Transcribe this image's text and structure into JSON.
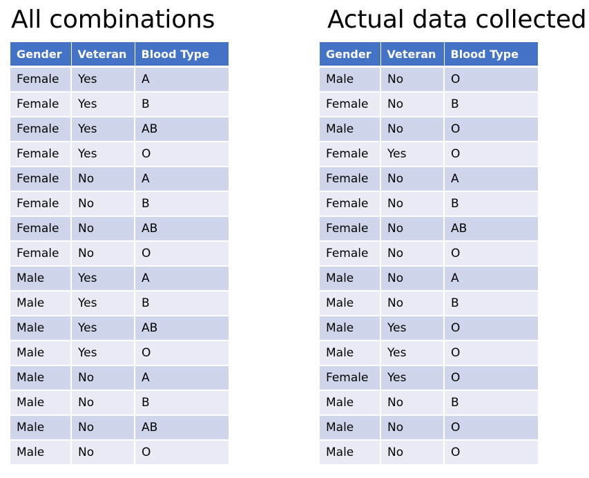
{
  "left": {
    "title": "All combinations",
    "headers": [
      "Gender",
      "Veteran",
      "Blood Type"
    ],
    "rows": [
      [
        "Female",
        "Yes",
        "A"
      ],
      [
        "Female",
        "Yes",
        "B"
      ],
      [
        "Female",
        "Yes",
        "AB"
      ],
      [
        "Female",
        "Yes",
        "O"
      ],
      [
        "Female",
        "No",
        "A"
      ],
      [
        "Female",
        "No",
        "B"
      ],
      [
        "Female",
        "No",
        "AB"
      ],
      [
        "Female",
        "No",
        "O"
      ],
      [
        "Male",
        "Yes",
        "A"
      ],
      [
        "Male",
        "Yes",
        "B"
      ],
      [
        "Male",
        "Yes",
        "AB"
      ],
      [
        "Male",
        "Yes",
        "O"
      ],
      [
        "Male",
        "No",
        "A"
      ],
      [
        "Male",
        "No",
        "B"
      ],
      [
        "Male",
        "No",
        "AB"
      ],
      [
        "Male",
        "No",
        "O"
      ]
    ]
  },
  "right": {
    "title": "Actual data collected",
    "headers": [
      "Gender",
      "Veteran",
      "Blood Type"
    ],
    "rows": [
      [
        "Male",
        "No",
        "O"
      ],
      [
        "Female",
        "No",
        "B"
      ],
      [
        "Male",
        "No",
        "O"
      ],
      [
        "Female",
        "Yes",
        "O"
      ],
      [
        "Female",
        "No",
        "A"
      ],
      [
        "Female",
        "No",
        "B"
      ],
      [
        "Female",
        "No",
        "AB"
      ],
      [
        "Female",
        "No",
        "O"
      ],
      [
        "Male",
        "No",
        "A"
      ],
      [
        "Male",
        "No",
        "B"
      ],
      [
        "Male",
        "Yes",
        "O"
      ],
      [
        "Male",
        "Yes",
        "O"
      ],
      [
        "Female",
        "Yes",
        "O"
      ],
      [
        "Male",
        "No",
        "B"
      ],
      [
        "Male",
        "No",
        "O"
      ],
      [
        "Male",
        "No",
        "O"
      ]
    ]
  },
  "colors": {
    "header_bg": "#4472c4",
    "header_text": "#ffffff",
    "row_odd": "#cfd5ea",
    "row_even": "#e9ebf5"
  }
}
